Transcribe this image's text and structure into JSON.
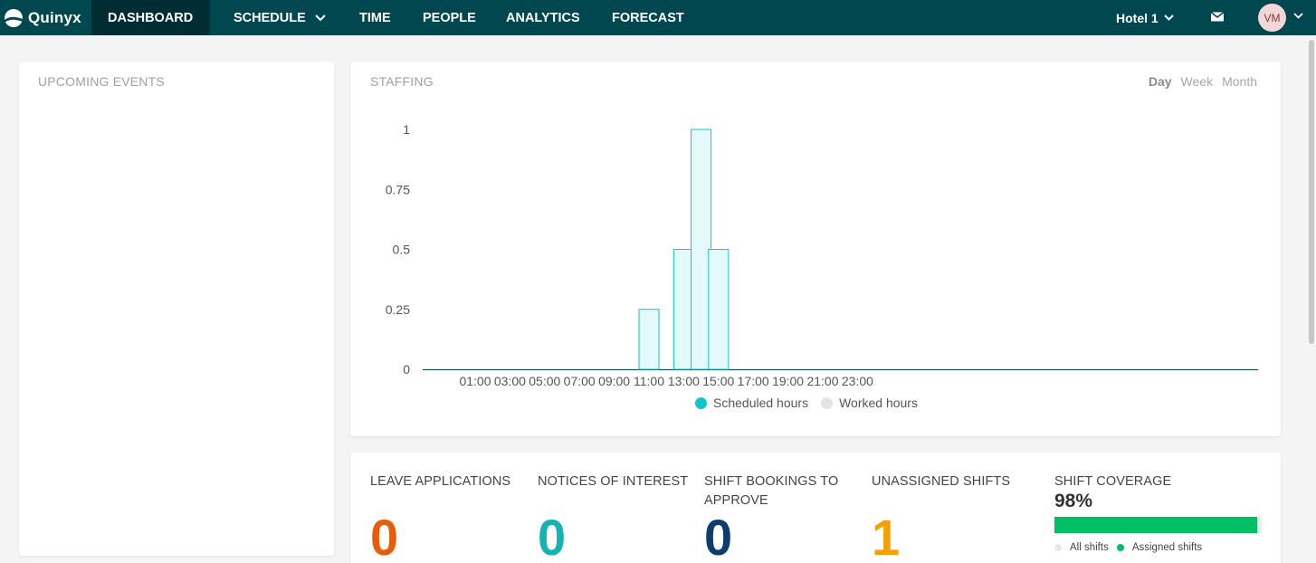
{
  "app": {
    "name": "Quinyx"
  },
  "nav": {
    "items": [
      {
        "label": "DASHBOARD"
      },
      {
        "label": "SCHEDULE"
      },
      {
        "label": "TIME"
      },
      {
        "label": "PEOPLE"
      },
      {
        "label": "ANALYTICS"
      },
      {
        "label": "FORECAST"
      }
    ],
    "unit": "Hotel 1",
    "user_initials": "VM"
  },
  "upcoming_events": {
    "title": "UPCOMING EVENTS"
  },
  "staffing": {
    "title": "STAFFING",
    "range_tabs": [
      "Day",
      "Week",
      "Month"
    ],
    "selected_range": "Day",
    "legend": {
      "scheduled": "Scheduled hours",
      "worked": "Worked hours"
    }
  },
  "chart_data": {
    "type": "bar",
    "x_ticks": [
      "01:00",
      "03:00",
      "05:00",
      "07:00",
      "09:00",
      "11:00",
      "13:00",
      "15:00",
      "17:00",
      "19:00",
      "21:00",
      "23:00"
    ],
    "y_ticks": [
      "0",
      "0.25",
      "0.5",
      "0.75",
      "1"
    ],
    "ylim": [
      0,
      1
    ],
    "series": [
      {
        "name": "Scheduled hours",
        "color": "#0fc6cc",
        "points": [
          {
            "hour": "11:00",
            "value": 0.25
          },
          {
            "hour": "13:00",
            "value": 0.5
          },
          {
            "hour": "14:00",
            "value": 1.0
          },
          {
            "hour": "15:00",
            "value": 0.5
          }
        ]
      },
      {
        "name": "Worked hours",
        "color": "#e4e4e8",
        "points": []
      }
    ]
  },
  "stats": {
    "leave_applications": {
      "label": "LEAVE APPLICATIONS",
      "value": "0",
      "color": "#e85d0c"
    },
    "notices_of_interest": {
      "label": "NOTICES OF INTEREST",
      "value": "0",
      "color": "#13b3b1"
    },
    "shift_bookings": {
      "label": "SHIFT BOOKINGS TO APPROVE",
      "value": "0",
      "color": "#0b3d6e"
    },
    "unassigned_shifts": {
      "label": "UNASSIGNED SHIFTS",
      "value": "1",
      "color": "#f5a000"
    }
  },
  "shift_coverage": {
    "title": "SHIFT COVERAGE",
    "percent_label": "98%",
    "fraction": 0.98,
    "legend_all": "All shifts",
    "legend_assigned": "Assigned shifts",
    "color_all": "#e0ecec",
    "color_assigned": "#00be64"
  }
}
